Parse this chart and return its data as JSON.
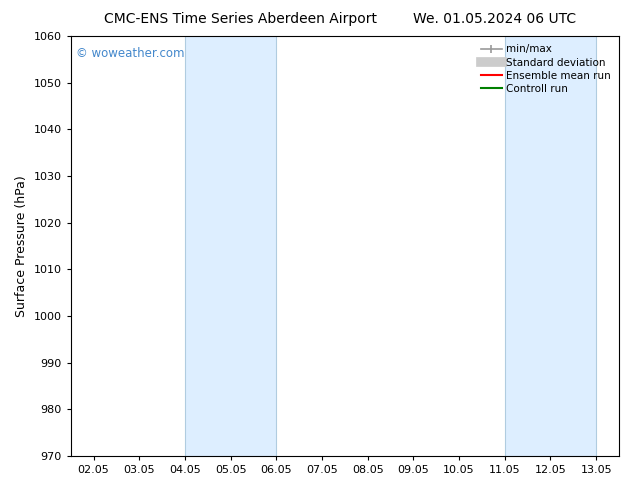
{
  "title_left": "CMC-ENS Time Series Aberdeen Airport",
  "title_right": "We. 01.05.2024 06 UTC",
  "ylabel": "Surface Pressure (hPa)",
  "ylim": [
    970,
    1060
  ],
  "yticks": [
    970,
    980,
    990,
    1000,
    1010,
    1020,
    1030,
    1040,
    1050,
    1060
  ],
  "xtick_labels": [
    "02.05",
    "03.05",
    "04.05",
    "05.05",
    "06.05",
    "07.05",
    "08.05",
    "09.05",
    "10.05",
    "11.05",
    "12.05",
    "13.05"
  ],
  "xtick_positions": [
    0,
    1,
    2,
    3,
    4,
    5,
    6,
    7,
    8,
    9,
    10,
    11
  ],
  "xlim": [
    -0.5,
    11.5
  ],
  "shaded_regions": [
    {
      "x_start": 2,
      "x_end": 4,
      "color": "#ddeeff"
    },
    {
      "x_start": 9,
      "x_end": 11,
      "color": "#ddeeff"
    }
  ],
  "shade_edge_color": "#b0cce0",
  "shade_edge_width": 0.8,
  "legend_items": [
    {
      "label": "min/max",
      "color": "#999999",
      "linestyle": "-",
      "linewidth": 1.2,
      "has_caps": true
    },
    {
      "label": "Standard deviation",
      "color": "#cccccc",
      "linestyle": "-",
      "linewidth": 7
    },
    {
      "label": "Ensemble mean run",
      "color": "red",
      "linestyle": "-",
      "linewidth": 1.5
    },
    {
      "label": "Controll run",
      "color": "green",
      "linestyle": "-",
      "linewidth": 1.5
    }
  ],
  "watermark": "© woweather.com",
  "watermark_color": "#4488cc",
  "background_color": "#ffffff",
  "title_fontsize": 10,
  "axis_label_fontsize": 9,
  "tick_fontsize": 8,
  "legend_fontsize": 7.5
}
